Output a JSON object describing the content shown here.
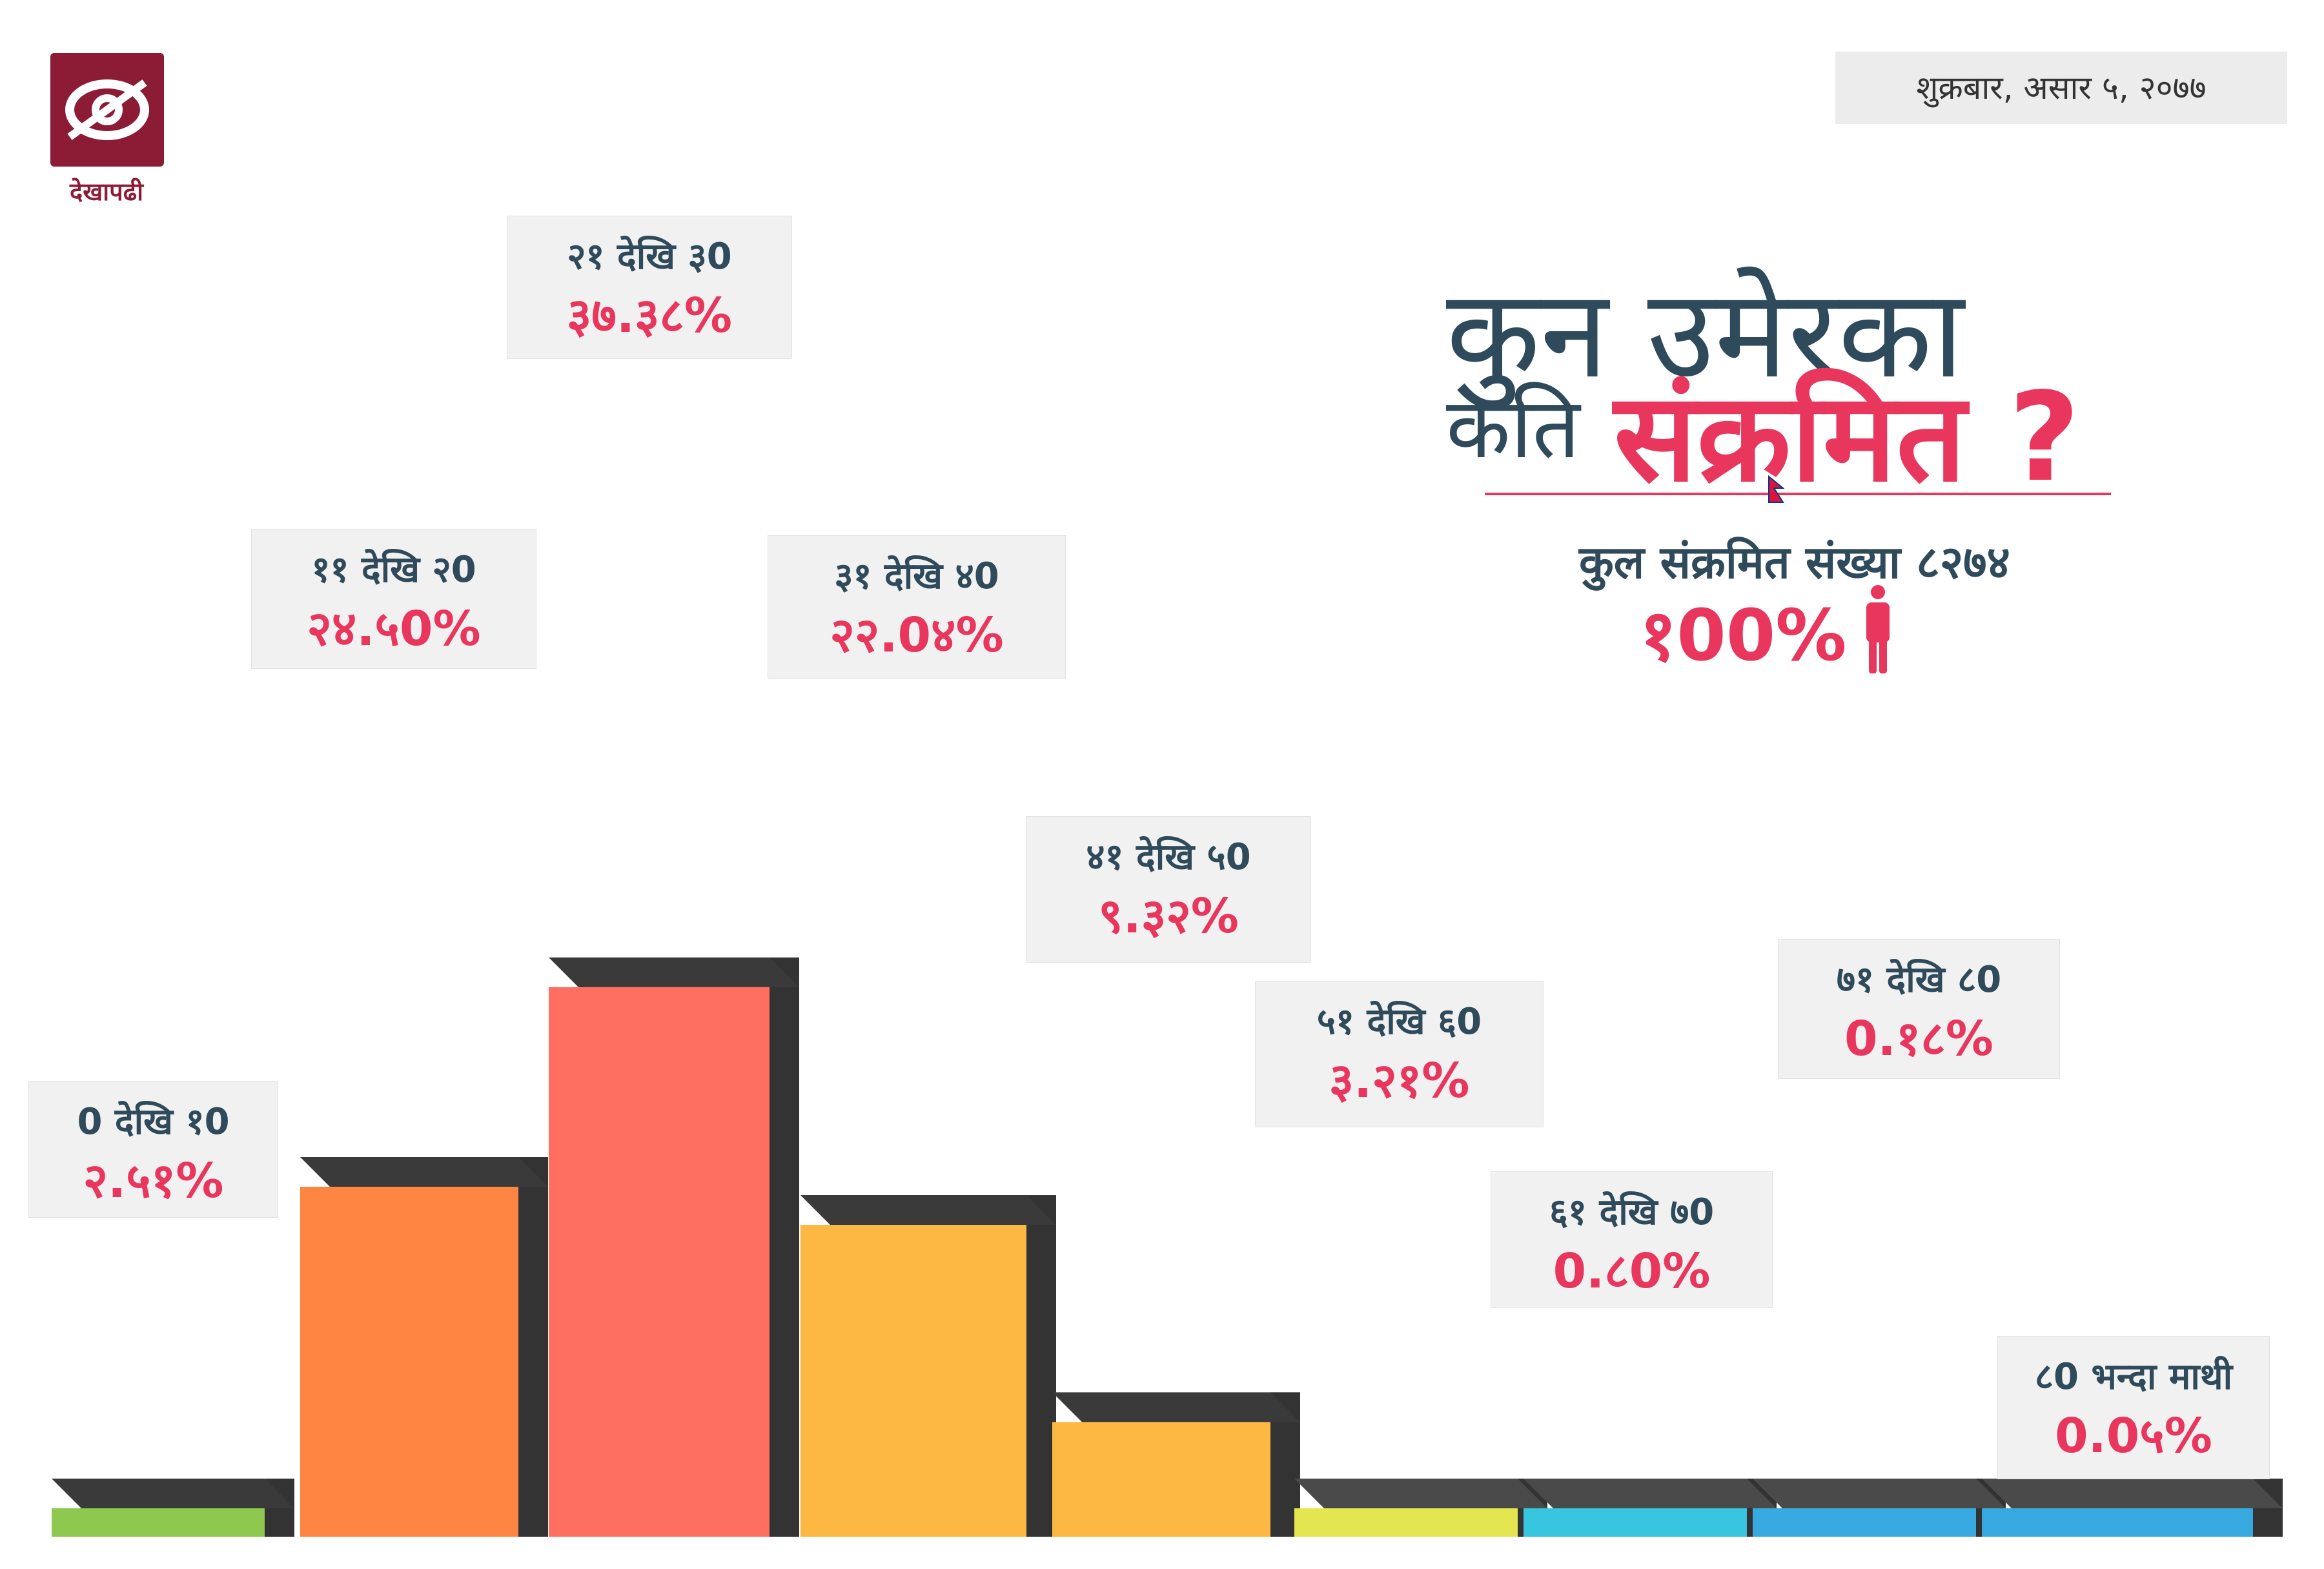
{
  "brand": {
    "name": "देखापढी",
    "color": "#8c1c36"
  },
  "date": "शुक्रबार, असार ५, २०७७",
  "headline": {
    "line1": "कुन उमेरका",
    "line2_plain": "कति",
    "line2_accent": "संक्रमित ?"
  },
  "total": {
    "label": "कुल संक्रमित संख्या ८२७४",
    "percent": "१00%"
  },
  "colors": {
    "title": "#2f4a5b",
    "accent": "#e8365d",
    "card_bg": "#f1f1f1"
  },
  "chart_data": {
    "type": "bar",
    "title": "",
    "xlabel": "",
    "ylabel": "",
    "categories": [
      "0 देखि १0",
      "११ देखि २0",
      "२१ देखि ३0",
      "३१ देखि ४0",
      "४१ देखि ५0",
      "५१ देखि ६0",
      "६१ देखि ७0",
      "७१ देखि ८0",
      "८0 भन्दा माथी"
    ],
    "value_labels": [
      "२.५१%",
      "२४.५0%",
      "३७.३८%",
      "२२.0४%",
      "९.३२%",
      "३.२१%",
      "0.८0%",
      "0.१८%",
      "0.0५%"
    ],
    "values": [
      2.51,
      24.5,
      37.38,
      22.04,
      9.32,
      3.21,
      0.8,
      0.18,
      0.05
    ],
    "bar_colors": [
      "#8ec84f",
      "#ff8542",
      "#ff6f61",
      "#fdb743",
      "#fdb743",
      "#e3e650",
      "#38c5e0",
      "#38a9e0",
      "#38a9e0"
    ],
    "ylim": [
      0,
      40
    ]
  }
}
